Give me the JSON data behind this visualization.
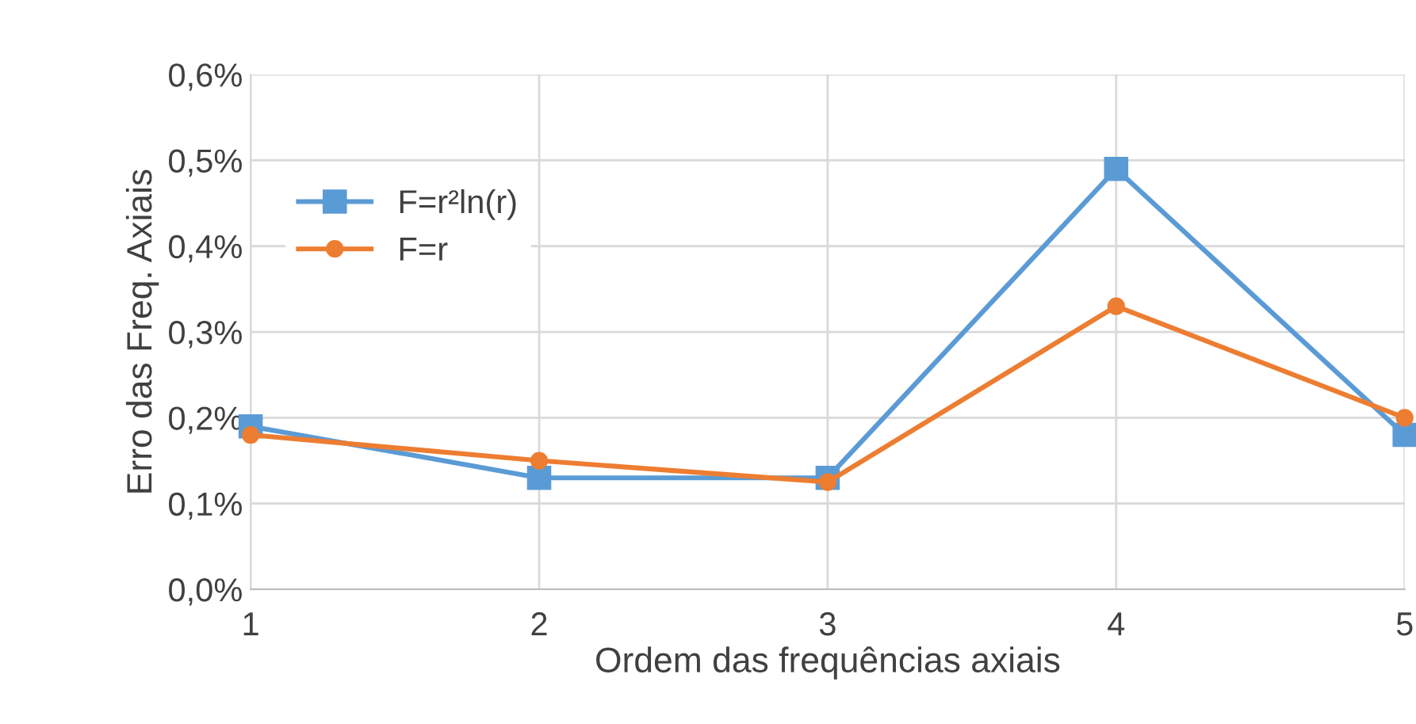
{
  "chart_data": {
    "type": "line",
    "xlabel": "Ordem das frequências axiais",
    "ylabel": "Erro das Freq. Axiais",
    "x": [
      1,
      2,
      3,
      4,
      5
    ],
    "series": [
      {
        "name": "F=r²ln(r)",
        "color": "#5b9bd5",
        "marker": "square",
        "values": [
          0.19,
          0.13,
          0.13,
          0.49,
          0.18
        ]
      },
      {
        "name": "F=r",
        "color": "#ed7d31",
        "marker": "circle",
        "values": [
          0.18,
          0.15,
          0.125,
          0.33,
          0.2
        ]
      }
    ],
    "xlim": [
      1,
      5
    ],
    "xticks": [
      1,
      2,
      3,
      4,
      5
    ],
    "ylim": [
      0,
      0.6
    ],
    "yticks": [
      {
        "value": 0,
        "label": "0,0%"
      },
      {
        "value": 0.1,
        "label": "0,1%"
      },
      {
        "value": 0.2,
        "label": "0,2%"
      },
      {
        "value": 0.3,
        "label": "0,3%"
      },
      {
        "value": 0.4,
        "label": "0,4%"
      },
      {
        "value": 0.5,
        "label": "0,5%"
      },
      {
        "value": 0.6,
        "label": "0,6%"
      }
    ],
    "grid": true,
    "legend": "top left",
    "line_style": "solid"
  }
}
